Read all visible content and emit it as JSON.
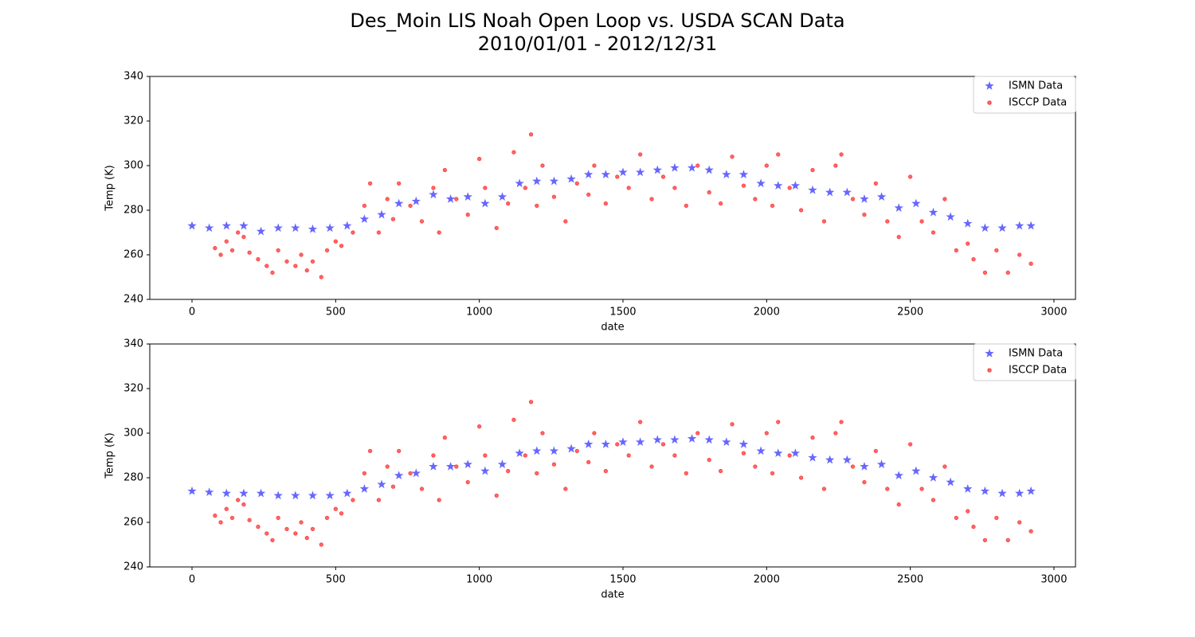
{
  "title": "Des_Moin LIS Noah Open Loop vs. USDA SCAN Data",
  "subtitle": "2010/01/01 - 2012/12/31",
  "chart_data": [
    {
      "type": "scatter",
      "xlabel": "date",
      "ylabel": "Temp (K)",
      "xlim": [
        -147,
        3075
      ],
      "ylim": [
        240,
        340
      ],
      "xticks": [
        0,
        500,
        1000,
        1500,
        2000,
        2500,
        3000
      ],
      "yticks": [
        240,
        260,
        280,
        300,
        320,
        340
      ],
      "legend": "upper right",
      "series": [
        {
          "name": "ISMN Data",
          "color": "#0000ff",
          "marker": "star",
          "x": [
            0,
            60,
            120,
            180,
            240,
            300,
            360,
            420,
            480,
            540,
            600,
            660,
            720,
            780,
            840,
            900,
            960,
            1020,
            1080,
            1140,
            1200,
            1260,
            1320,
            1380,
            1440,
            1500,
            1560,
            1620,
            1680,
            1740,
            1800,
            1860,
            1920,
            1980,
            2040,
            2100,
            2160,
            2220,
            2280,
            2340,
            2400,
            2460,
            2520,
            2580,
            2640,
            2700,
            2760,
            2820,
            2880,
            2920
          ],
          "values": [
            273,
            272,
            273,
            273,
            270.5,
            272,
            272,
            271.5,
            272,
            273,
            276,
            278,
            283,
            284,
            287,
            285,
            286,
            283,
            286,
            292,
            293,
            293,
            294,
            296,
            296,
            297,
            297,
            298,
            299,
            299,
            298,
            296,
            296,
            292,
            291,
            291,
            289,
            288,
            288,
            285,
            286,
            281,
            283,
            279,
            277,
            274,
            272,
            272,
            273,
            273
          ]
        },
        {
          "name": "ISCCP Data",
          "color": "#ff0000",
          "marker": "circle",
          "x": [
            80,
            100,
            120,
            140,
            160,
            180,
            200,
            230,
            260,
            280,
            300,
            330,
            360,
            380,
            400,
            420,
            450,
            470,
            500,
            520,
            560,
            600,
            620,
            650,
            680,
            700,
            720,
            760,
            800,
            840,
            860,
            880,
            920,
            960,
            1000,
            1020,
            1060,
            1100,
            1120,
            1160,
            1180,
            1200,
            1220,
            1260,
            1300,
            1340,
            1380,
            1400,
            1440,
            1480,
            1520,
            1560,
            1600,
            1640,
            1680,
            1720,
            1760,
            1800,
            1840,
            1880,
            1920,
            1960,
            2000,
            2020,
            2040,
            2080,
            2120,
            2160,
            2200,
            2240,
            2260,
            2300,
            2340,
            2380,
            2420,
            2460,
            2500,
            2540,
            2580,
            2620,
            2660,
            2700,
            2720,
            2760,
            2800,
            2840,
            2880,
            2920
          ],
          "values": [
            263,
            260,
            266,
            262,
            270,
            268,
            261,
            258,
            255,
            252,
            262,
            257,
            255,
            260,
            253,
            257,
            250,
            262,
            266,
            264,
            270,
            282,
            292,
            270,
            285,
            276,
            292,
            282,
            275,
            290,
            270,
            298,
            285,
            278,
            303,
            290,
            272,
            283,
            306,
            290,
            314,
            282,
            300,
            286,
            275,
            292,
            287,
            300,
            283,
            295,
            290,
            305,
            285,
            295,
            290,
            282,
            300,
            288,
            283,
            304,
            291,
            285,
            300,
            282,
            305,
            290,
            280,
            298,
            275,
            300,
            305,
            285,
            278,
            292,
            275,
            268,
            295,
            275,
            270,
            285,
            262,
            265,
            258,
            252,
            262,
            252,
            260,
            256
          ]
        }
      ]
    },
    {
      "type": "scatter",
      "xlabel": "date",
      "ylabel": "Temp (K)",
      "xlim": [
        -147,
        3075
      ],
      "ylim": [
        240,
        340
      ],
      "xticks": [
        0,
        500,
        1000,
        1500,
        2000,
        2500,
        3000
      ],
      "yticks": [
        240,
        260,
        280,
        300,
        320,
        340
      ],
      "legend": "upper right",
      "series": [
        {
          "name": "ISMN Data",
          "color": "#0000ff",
          "marker": "star",
          "x": [
            0,
            60,
            120,
            180,
            240,
            300,
            360,
            420,
            480,
            540,
            600,
            660,
            720,
            780,
            840,
            900,
            960,
            1020,
            1080,
            1140,
            1200,
            1260,
            1320,
            1380,
            1440,
            1500,
            1560,
            1620,
            1680,
            1740,
            1800,
            1860,
            1920,
            1980,
            2040,
            2100,
            2160,
            2220,
            2280,
            2340,
            2400,
            2460,
            2520,
            2580,
            2640,
            2700,
            2760,
            2820,
            2880,
            2920
          ],
          "values": [
            274,
            273.5,
            273,
            273,
            273,
            272,
            272,
            272,
            272,
            273,
            275,
            277,
            281,
            282,
            285,
            285,
            286,
            283,
            286,
            291,
            292,
            292,
            293,
            295,
            295,
            296,
            296,
            297,
            297,
            297.5,
            297,
            296,
            295,
            292,
            291,
            291,
            289,
            288,
            288,
            285,
            286,
            281,
            283,
            280,
            278,
            275,
            274,
            273,
            273,
            274
          ]
        },
        {
          "name": "ISCCP Data",
          "color": "#ff0000",
          "marker": "circle",
          "x": [
            80,
            100,
            120,
            140,
            160,
            180,
            200,
            230,
            260,
            280,
            300,
            330,
            360,
            380,
            400,
            420,
            450,
            470,
            500,
            520,
            560,
            600,
            620,
            650,
            680,
            700,
            720,
            760,
            800,
            840,
            860,
            880,
            920,
            960,
            1000,
            1020,
            1060,
            1100,
            1120,
            1160,
            1180,
            1200,
            1220,
            1260,
            1300,
            1340,
            1380,
            1400,
            1440,
            1480,
            1520,
            1560,
            1600,
            1640,
            1680,
            1720,
            1760,
            1800,
            1840,
            1880,
            1920,
            1960,
            2000,
            2020,
            2040,
            2080,
            2120,
            2160,
            2200,
            2240,
            2260,
            2300,
            2340,
            2380,
            2420,
            2460,
            2500,
            2540,
            2580,
            2620,
            2660,
            2700,
            2720,
            2760,
            2800,
            2840,
            2880,
            2920
          ],
          "values": [
            263,
            260,
            266,
            262,
            270,
            268,
            261,
            258,
            255,
            252,
            262,
            257,
            255,
            260,
            253,
            257,
            250,
            262,
            266,
            264,
            270,
            282,
            292,
            270,
            285,
            276,
            292,
            282,
            275,
            290,
            270,
            298,
            285,
            278,
            303,
            290,
            272,
            283,
            306,
            290,
            314,
            282,
            300,
            286,
            275,
            292,
            287,
            300,
            283,
            295,
            290,
            305,
            285,
            295,
            290,
            282,
            300,
            288,
            283,
            304,
            291,
            285,
            300,
            282,
            305,
            290,
            280,
            298,
            275,
            300,
            305,
            285,
            278,
            292,
            275,
            268,
            295,
            275,
            270,
            285,
            262,
            265,
            258,
            252,
            262,
            252,
            260,
            256
          ]
        }
      ]
    }
  ]
}
